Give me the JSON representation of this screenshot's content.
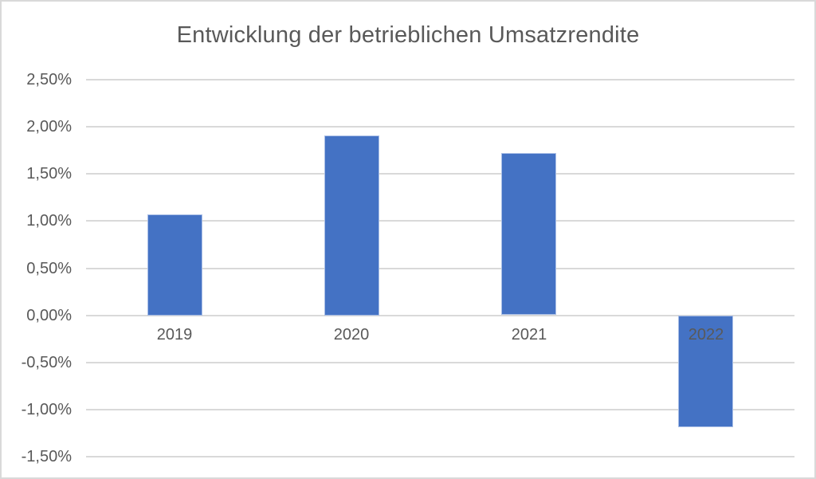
{
  "chart_data": {
    "type": "bar",
    "title": "Entwicklung der betrieblichen Umsatzrendite",
    "categories": [
      "2019",
      "2020",
      "2021",
      "2022"
    ],
    "values": [
      1.07,
      1.91,
      1.72,
      -1.18
    ],
    "value_unit": "%",
    "xlabel": "",
    "ylabel": "",
    "ylim": [
      -1.5,
      2.5
    ],
    "y_ticks": [
      {
        "value": 2.5,
        "label": "2,50%"
      },
      {
        "value": 2.0,
        "label": "2,00%"
      },
      {
        "value": 1.5,
        "label": "1,50%"
      },
      {
        "value": 1.0,
        "label": "1,00%"
      },
      {
        "value": 0.5,
        "label": "0,50%"
      },
      {
        "value": 0.0,
        "label": "0,00%"
      },
      {
        "value": -0.5,
        "label": "-0,50%"
      },
      {
        "value": -1.0,
        "label": "-1,00%"
      },
      {
        "value": -1.5,
        "label": "-1,50%"
      }
    ],
    "grid": true,
    "legend": false
  },
  "colors": {
    "bar": "#4472C4",
    "bar_edge": "#AABFE6",
    "grid": "#D9D9D9",
    "axis": "#D9D9D9",
    "text": "#595959",
    "frame_border": "#D9D9D9",
    "background": "#FFFFFF"
  }
}
